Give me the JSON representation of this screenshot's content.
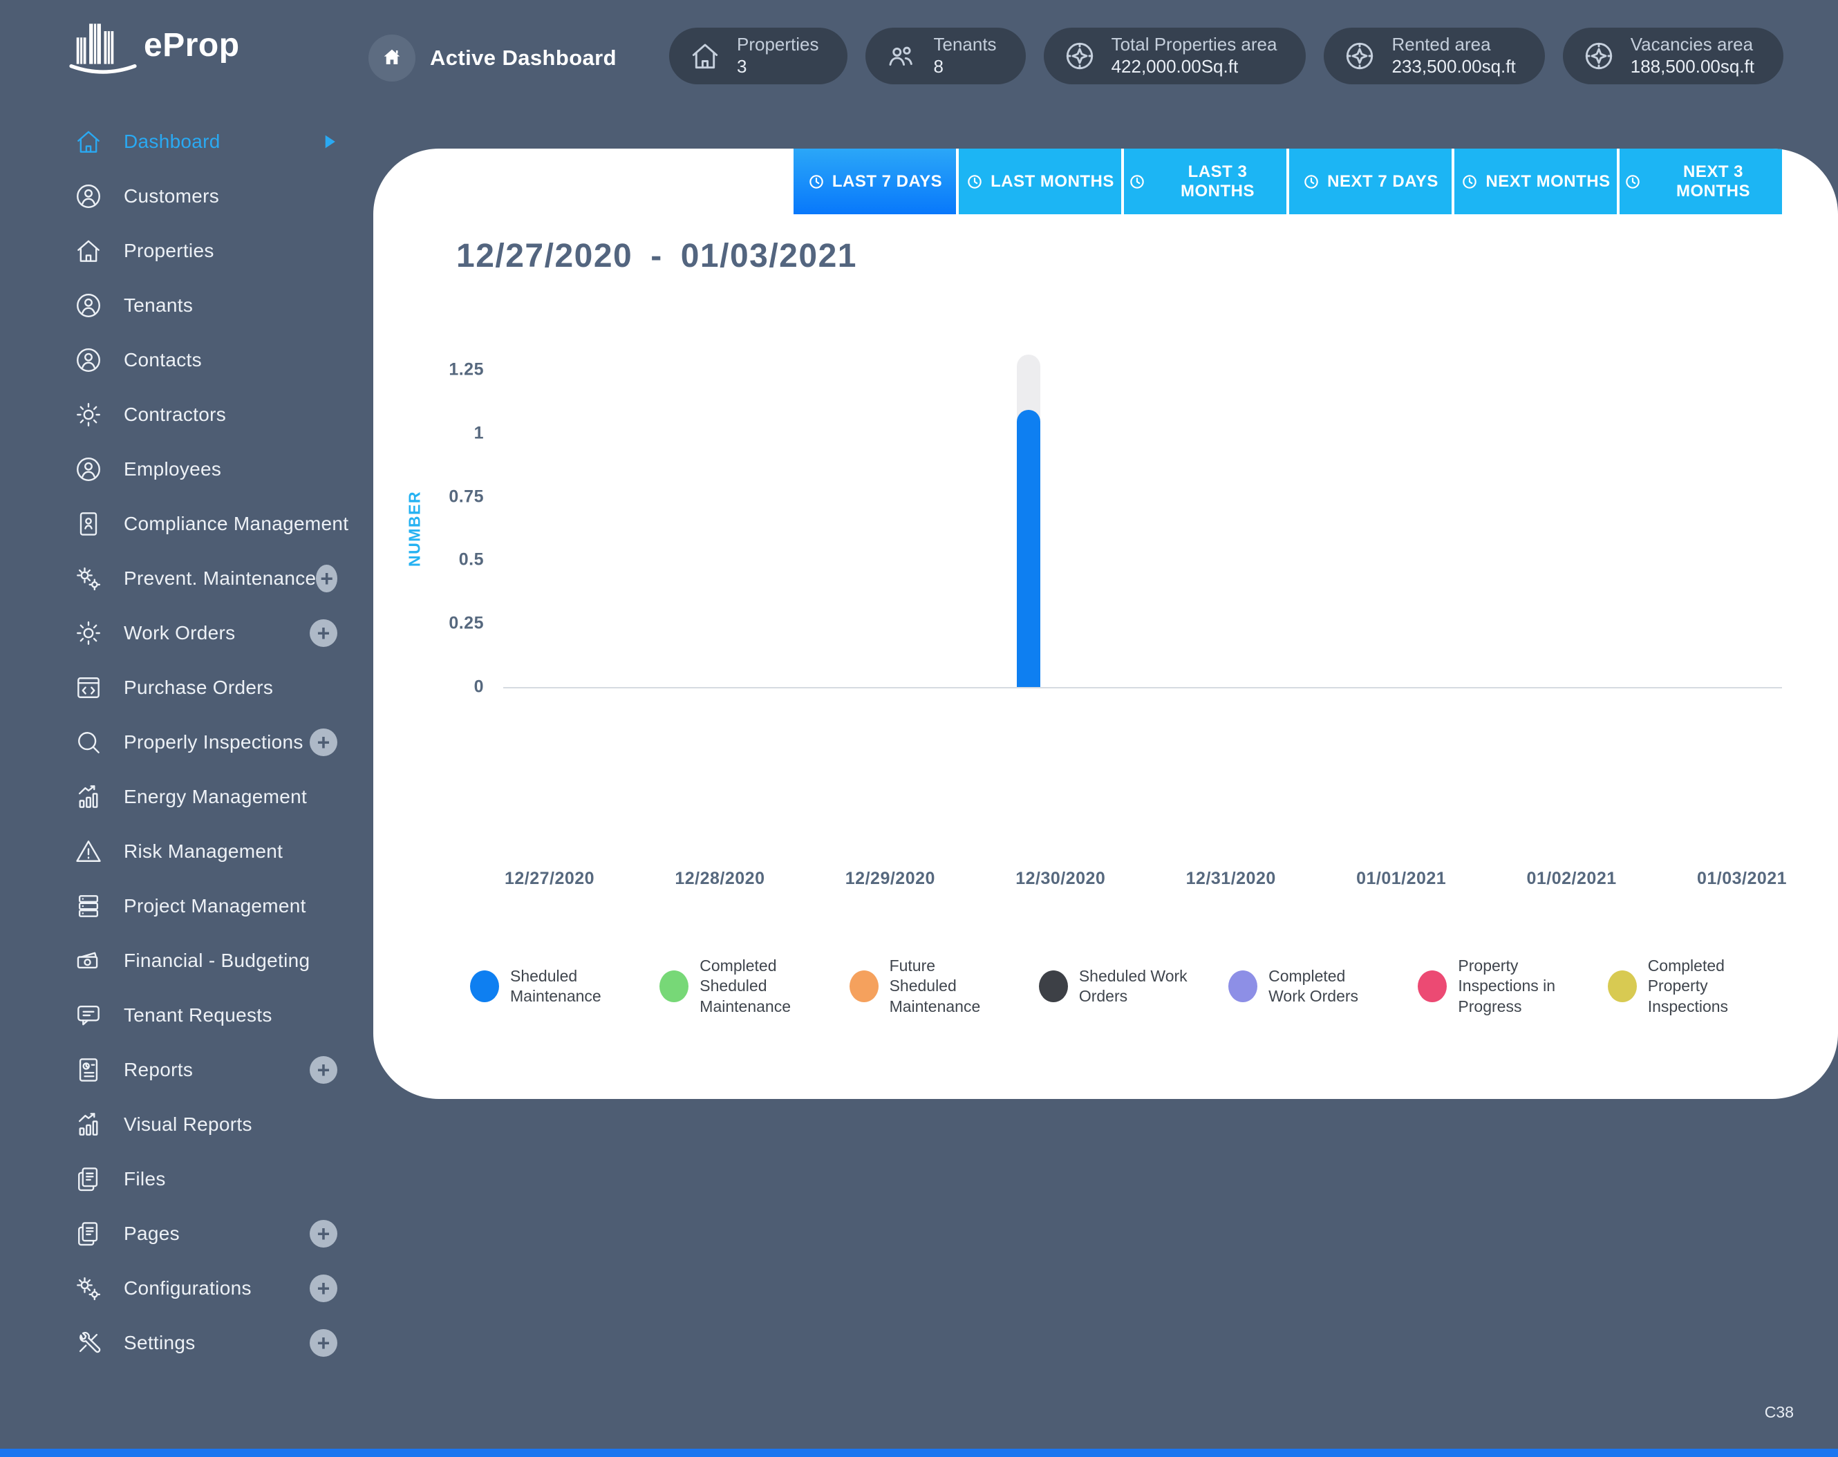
{
  "brand": {
    "name": "eProp"
  },
  "header": {
    "breadcrumb": "Active Dashboard"
  },
  "stats": [
    {
      "icon": "house-icon",
      "label": "Properties",
      "value": "3"
    },
    {
      "icon": "people-icon",
      "label": "Tenants",
      "value": "8"
    },
    {
      "icon": "compass-icon",
      "label": "Total Properties area",
      "value": "422,000.00Sq.ft"
    },
    {
      "icon": "compass-icon",
      "label": "Rented area",
      "value": "233,500.00sq.ft"
    },
    {
      "icon": "compass-icon",
      "label": "Vacancies area",
      "value": "188,500.00sq.ft"
    }
  ],
  "sidebar": {
    "items": [
      {
        "label": "Dashboard",
        "icon": "home-icon",
        "active": true,
        "trailing": "arrow"
      },
      {
        "label": "Customers",
        "icon": "user-icon"
      },
      {
        "label": "Properties",
        "icon": "home-icon"
      },
      {
        "label": "Tenants",
        "icon": "user-icon"
      },
      {
        "label": "Contacts",
        "icon": "user-icon"
      },
      {
        "label": "Contractors",
        "icon": "gear-icon"
      },
      {
        "label": "Employees",
        "icon": "user-icon"
      },
      {
        "label": "Compliance Management",
        "icon": "document-icon"
      },
      {
        "label": "Prevent. Maintenance",
        "icon": "gears-icon",
        "trailing": "plus"
      },
      {
        "label": "Work Orders",
        "icon": "gear-icon",
        "trailing": "plus"
      },
      {
        "label": "Purchase Orders",
        "icon": "code-window-icon"
      },
      {
        "label": "Properly Inspections",
        "icon": "search-icon",
        "trailing": "plus"
      },
      {
        "label": "Energy Management",
        "icon": "bar-chart-icon"
      },
      {
        "label": "Risk Management",
        "icon": "warning-icon"
      },
      {
        "label": "Project Management",
        "icon": "server-icon"
      },
      {
        "label": "Financial - Budgeting",
        "icon": "money-icon"
      },
      {
        "label": "Tenant Requests",
        "icon": "chat-icon"
      },
      {
        "label": "Reports",
        "icon": "report-icon",
        "trailing": "plus"
      },
      {
        "label": "Visual Reports",
        "icon": "bar-chart-icon"
      },
      {
        "label": "Files",
        "icon": "files-icon"
      },
      {
        "label": "Pages",
        "icon": "files-icon",
        "trailing": "plus"
      },
      {
        "label": "Configurations",
        "icon": "gears-icon",
        "trailing": "plus"
      },
      {
        "label": "Settings",
        "icon": "tools-icon",
        "trailing": "plus"
      }
    ]
  },
  "tabs": [
    {
      "label": "LAST 7 DAYS",
      "icon": "clock-icon",
      "active": true
    },
    {
      "label": "LAST MONTHS",
      "icon": "clock-icon",
      "active": false
    },
    {
      "label": "LAST 3 MONTHS",
      "icon": "clock-icon",
      "active": false
    },
    {
      "label": "NEXT 7 DAYS",
      "icon": "clock-icon",
      "active": false
    },
    {
      "label": "NEXT MONTHS",
      "icon": "clock-icon",
      "active": false
    },
    {
      "label": "NEXT 3 MONTHS",
      "icon": "clock-icon",
      "active": false
    }
  ],
  "period": {
    "start": "12/27/2020",
    "sep": "-",
    "end": "01/03/2021"
  },
  "chart_data": {
    "type": "bar",
    "title": "12/27/2020 - 01/03/2021",
    "xlabel": "",
    "ylabel": "NUMBER",
    "ylim": [
      0,
      1.25
    ],
    "yticks": [
      0,
      0.25,
      0.5,
      0.75,
      1,
      1.25
    ],
    "grid": false,
    "legend_position": "bottom",
    "categories": [
      "12/27/2020",
      "12/28/2020",
      "12/29/2020",
      "12/30/2020",
      "12/31/2020",
      "01/01/2021",
      "01/02/2021",
      "01/03/2021"
    ],
    "series": [
      {
        "name": "Sheduled Maintenance",
        "color": "#0e7ff1",
        "values": [
          0,
          0,
          0,
          1,
          0,
          0,
          0,
          0
        ]
      },
      {
        "name": "Completed Sheduled Maintenance",
        "color": "#77d877",
        "values": [
          0,
          0,
          0,
          0,
          0,
          0,
          0,
          0
        ]
      },
      {
        "name": "Future Sheduled Maintenance",
        "color": "#f5a15d",
        "values": [
          0,
          0,
          0,
          0,
          0,
          0,
          0,
          0
        ]
      },
      {
        "name": "Sheduled Work Orders",
        "color": "#3d4046",
        "values": [
          0,
          0,
          0,
          0,
          0,
          0,
          0,
          0
        ]
      },
      {
        "name": "Completed Work Orders",
        "color": "#8d8fe6",
        "values": [
          0,
          0,
          0,
          0,
          0,
          0,
          0,
          0
        ]
      },
      {
        "name": "Property Inspections in Progress",
        "color": "#ec4a73",
        "values": [
          0,
          0,
          0,
          0,
          0,
          0,
          0,
          0
        ]
      },
      {
        "name": "Completed Property Inspections",
        "color": "#d8ca52",
        "values": [
          0,
          0,
          0,
          0,
          0,
          0,
          0,
          0
        ]
      }
    ]
  },
  "footer": {
    "page_code": "C38"
  }
}
